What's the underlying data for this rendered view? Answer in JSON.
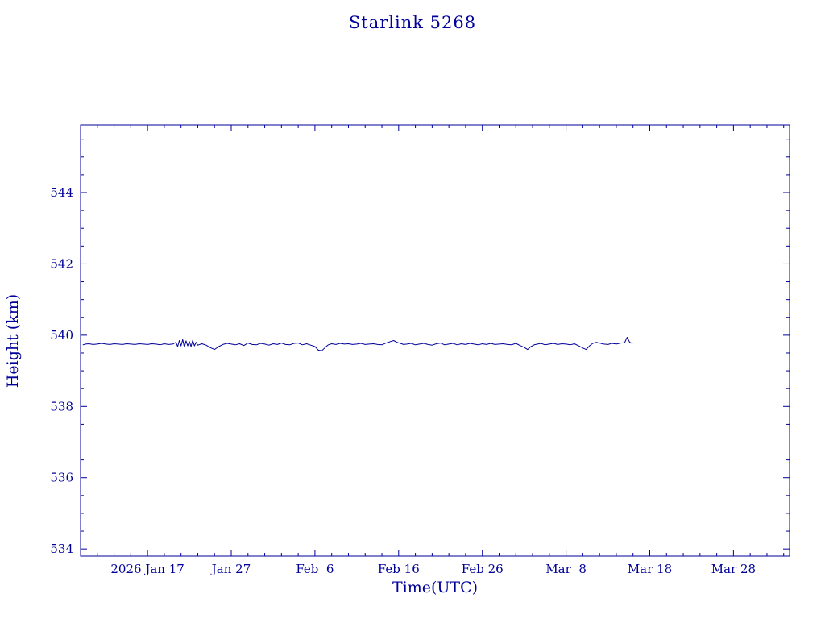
{
  "chart_data": {
    "type": "line",
    "title": "Starlink 5268",
    "xlabel": "Time(UTC)",
    "ylabel": "Height (km)",
    "grid": false,
    "legend": "none",
    "colors": {
      "background": "#ffffff",
      "axis": "#000099",
      "text": "#000099",
      "line": "#000099"
    },
    "x_axis": {
      "unit": "day_of_year_2026",
      "lim": [
        9.0,
        93.7
      ],
      "minor_tick_step_days": 2,
      "major_ticks": [
        {
          "day": 17,
          "label": "2026 Jan 17"
        },
        {
          "day": 27,
          "label": "Jan 27"
        },
        {
          "day": 37,
          "label": "Feb  6"
        },
        {
          "day": 47,
          "label": "Feb 16"
        },
        {
          "day": 57,
          "label": "Feb 26"
        },
        {
          "day": 67,
          "label": "Mar  8"
        },
        {
          "day": 77,
          "label": "Mar 18"
        },
        {
          "day": 87,
          "label": "Mar 28"
        }
      ]
    },
    "y_axis": {
      "unit": "km",
      "lim": [
        533.8,
        545.9
      ],
      "minor_tick_step_km": 0.5,
      "major_ticks": [
        534,
        536,
        538,
        540,
        542,
        544
      ]
    },
    "series": [
      {
        "name": "height_km",
        "color": "#000099",
        "points": [
          [
            9.3,
            539.73
          ],
          [
            9.6,
            539.75
          ],
          [
            10,
            539.76
          ],
          [
            10.5,
            539.74
          ],
          [
            11,
            539.75
          ],
          [
            11.5,
            539.77
          ],
          [
            12,
            539.75
          ],
          [
            12.5,
            539.74
          ],
          [
            13,
            539.76
          ],
          [
            13.5,
            539.75
          ],
          [
            14,
            539.74
          ],
          [
            14.5,
            539.76
          ],
          [
            15,
            539.75
          ],
          [
            15.5,
            539.74
          ],
          [
            16,
            539.76
          ],
          [
            16.5,
            539.75
          ],
          [
            17,
            539.74
          ],
          [
            17.5,
            539.76
          ],
          [
            18,
            539.75
          ],
          [
            18.5,
            539.73
          ],
          [
            19,
            539.76
          ],
          [
            19.5,
            539.74
          ],
          [
            20,
            539.75
          ],
          [
            20.4,
            539.8
          ],
          [
            20.6,
            539.68
          ],
          [
            20.8,
            539.85
          ],
          [
            21,
            539.7
          ],
          [
            21.2,
            539.88
          ],
          [
            21.4,
            539.66
          ],
          [
            21.6,
            539.84
          ],
          [
            21.8,
            539.7
          ],
          [
            22,
            539.82
          ],
          [
            22.2,
            539.68
          ],
          [
            22.4,
            539.86
          ],
          [
            22.6,
            539.7
          ],
          [
            22.8,
            539.8
          ],
          [
            23,
            539.72
          ],
          [
            23.5,
            539.76
          ],
          [
            24,
            539.72
          ],
          [
            24.5,
            539.65
          ],
          [
            25,
            539.6
          ],
          [
            25.5,
            539.68
          ],
          [
            26,
            539.74
          ],
          [
            26.5,
            539.77
          ],
          [
            27,
            539.75
          ],
          [
            27.5,
            539.73
          ],
          [
            28,
            539.76
          ],
          [
            28.5,
            539.71
          ],
          [
            29,
            539.78
          ],
          [
            29.5,
            539.74
          ],
          [
            30,
            539.73
          ],
          [
            30.5,
            539.77
          ],
          [
            31,
            539.75
          ],
          [
            31.5,
            539.72
          ],
          [
            32,
            539.76
          ],
          [
            32.5,
            539.74
          ],
          [
            33,
            539.78
          ],
          [
            33.5,
            539.74
          ],
          [
            34,
            539.73
          ],
          [
            34.5,
            539.77
          ],
          [
            35,
            539.78
          ],
          [
            35.5,
            539.73
          ],
          [
            36,
            539.76
          ],
          [
            36.5,
            539.72
          ],
          [
            37,
            539.68
          ],
          [
            37.4,
            539.58
          ],
          [
            37.8,
            539.56
          ],
          [
            38.2,
            539.65
          ],
          [
            38.6,
            539.73
          ],
          [
            39,
            539.76
          ],
          [
            39.5,
            539.74
          ],
          [
            40,
            539.77
          ],
          [
            40.5,
            539.75
          ],
          [
            41,
            539.76
          ],
          [
            41.5,
            539.74
          ],
          [
            42,
            539.75
          ],
          [
            42.5,
            539.77
          ],
          [
            43,
            539.74
          ],
          [
            43.5,
            539.75
          ],
          [
            44,
            539.76
          ],
          [
            44.5,
            539.74
          ],
          [
            45,
            539.73
          ],
          [
            45.5,
            539.78
          ],
          [
            46,
            539.82
          ],
          [
            46.4,
            539.85
          ],
          [
            46.8,
            539.8
          ],
          [
            47.2,
            539.77
          ],
          [
            47.6,
            539.74
          ],
          [
            48,
            539.75
          ],
          [
            48.5,
            539.77
          ],
          [
            49,
            539.73
          ],
          [
            49.5,
            539.75
          ],
          [
            50,
            539.77
          ],
          [
            50.5,
            539.74
          ],
          [
            51,
            539.72
          ],
          [
            51.5,
            539.76
          ],
          [
            52,
            539.78
          ],
          [
            52.5,
            539.73
          ],
          [
            53,
            539.75
          ],
          [
            53.5,
            539.77
          ],
          [
            54,
            539.73
          ],
          [
            54.5,
            539.76
          ],
          [
            55,
            539.74
          ],
          [
            55.5,
            539.77
          ],
          [
            56,
            539.75
          ],
          [
            56.5,
            539.73
          ],
          [
            57,
            539.76
          ],
          [
            57.5,
            539.74
          ],
          [
            58,
            539.77
          ],
          [
            58.5,
            539.74
          ],
          [
            59,
            539.75
          ],
          [
            59.5,
            539.76
          ],
          [
            60,
            539.74
          ],
          [
            60.5,
            539.73
          ],
          [
            61,
            539.77
          ],
          [
            61.5,
            539.71
          ],
          [
            62,
            539.66
          ],
          [
            62.4,
            539.6
          ],
          [
            62.8,
            539.68
          ],
          [
            63.2,
            539.73
          ],
          [
            63.6,
            539.75
          ],
          [
            64,
            539.77
          ],
          [
            64.5,
            539.73
          ],
          [
            65,
            539.75
          ],
          [
            65.5,
            539.77
          ],
          [
            66,
            539.74
          ],
          [
            66.5,
            539.76
          ],
          [
            67,
            539.75
          ],
          [
            67.5,
            539.73
          ],
          [
            68,
            539.76
          ],
          [
            68.5,
            539.7
          ],
          [
            69,
            539.64
          ],
          [
            69.4,
            539.6
          ],
          [
            69.8,
            539.7
          ],
          [
            70.2,
            539.77
          ],
          [
            70.6,
            539.8
          ],
          [
            71,
            539.78
          ],
          [
            71.5,
            539.75
          ],
          [
            72,
            539.74
          ],
          [
            72.5,
            539.77
          ],
          [
            73,
            539.75
          ],
          [
            73.5,
            539.78
          ],
          [
            74,
            539.79
          ],
          [
            74.3,
            539.94
          ],
          [
            74.6,
            539.8
          ],
          [
            74.9,
            539.77
          ]
        ]
      }
    ]
  }
}
